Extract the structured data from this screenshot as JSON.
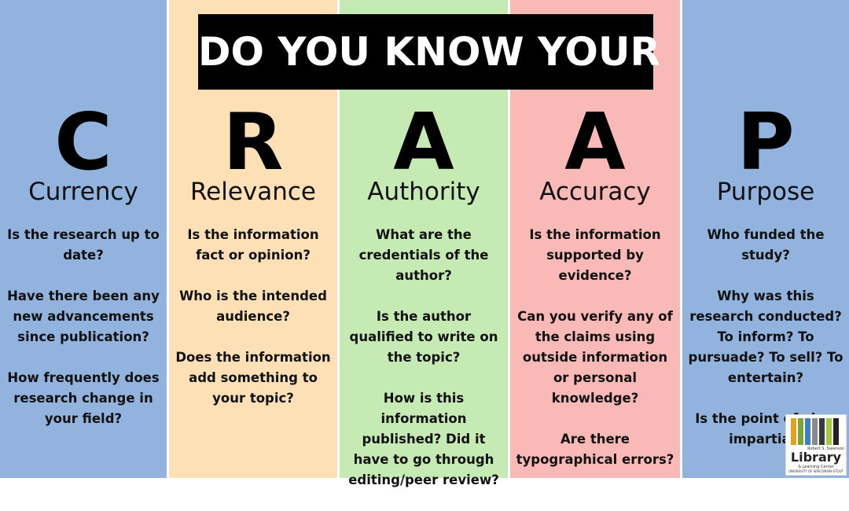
{
  "title": "DO YOU KNOW YOUR",
  "columns": [
    {
      "letter": "C",
      "word": "Currency",
      "color": "#93b3df",
      "questions": [
        "Is the research up to date?",
        "Have there been any new advancements since publication?",
        "How frequently does research change in your field?"
      ]
    },
    {
      "letter": "R",
      "word": "Relevance",
      "color": "#fde0b6",
      "questions": [
        "Is the information fact or opinion?",
        "Who is the intended audience?",
        "Does the information add something to your topic?"
      ]
    },
    {
      "letter": "A",
      "word": "Authority",
      "color": "#c6eab4",
      "questions": [
        "What are the credentials of the author?",
        "Is the author qualified to write on the topic?",
        "How is this information published? Did it have to go through editing/peer review?"
      ]
    },
    {
      "letter": "A",
      "word": "Accuracy",
      "color": "#f9b9b6",
      "questions": [
        "Is the information supported by evidence?",
        "Can you verify any of the claims using outside information or personal knowledge?",
        "Are there typographical errors?"
      ]
    },
    {
      "letter": "P",
      "word": "Purpose",
      "color": "#93b3df",
      "questions": [
        "Who funded the study?",
        "Why was this research conducted? To inform? To pursuade? To sell? To entertain?",
        "Is the point of view impartial?"
      ]
    }
  ],
  "logo": {
    "small_text": "Robert S. Swanson",
    "name": "Library",
    "subtitle": "& Learning Center",
    "university": "UNIVERSITY OF WISCONSIN-STOUT",
    "bar_colors": [
      "#e6a21f",
      "#7aa63a",
      "#3f7fc0",
      "#8a8a8a",
      "#3b3b3b",
      "#a6c93e",
      "#222222"
    ]
  }
}
